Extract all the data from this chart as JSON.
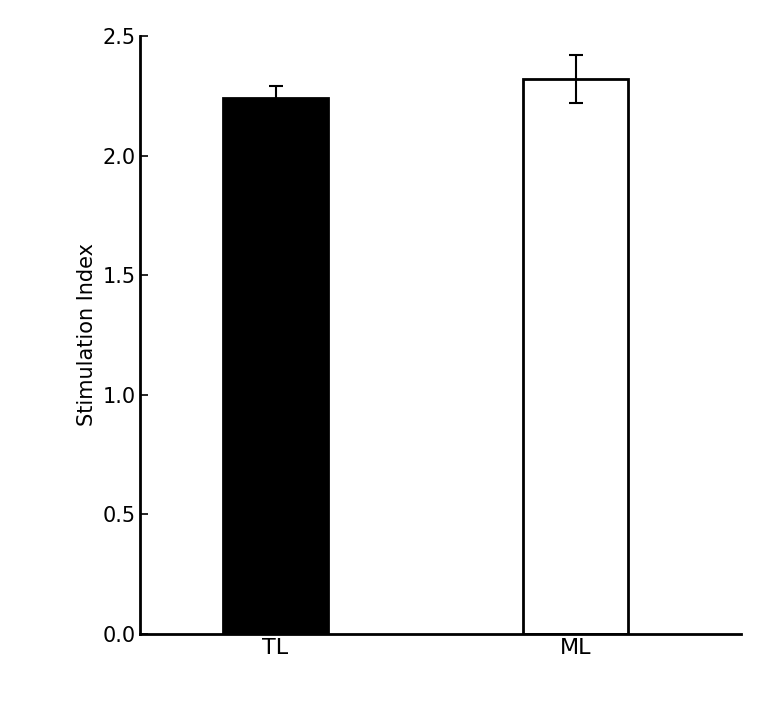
{
  "categories": [
    "TL",
    "ML"
  ],
  "values": [
    2.24,
    2.32
  ],
  "errors": [
    0.05,
    0.1
  ],
  "bar_colors": [
    "#000000",
    "#ffffff"
  ],
  "bar_edgecolors": [
    "#000000",
    "#000000"
  ],
  "ylabel": "Stimulation Index",
  "ylim": [
    0.0,
    2.5
  ],
  "yticks": [
    0.0,
    0.5,
    1.0,
    1.5,
    2.0,
    2.5
  ],
  "bar_width": 0.35,
  "bar_positions": [
    1,
    2
  ],
  "error_capsize": 5,
  "error_linewidth": 1.5,
  "ylabel_fontsize": 15,
  "tick_fontsize": 15,
  "xtick_fontsize": 16,
  "background_color": "#ffffff"
}
